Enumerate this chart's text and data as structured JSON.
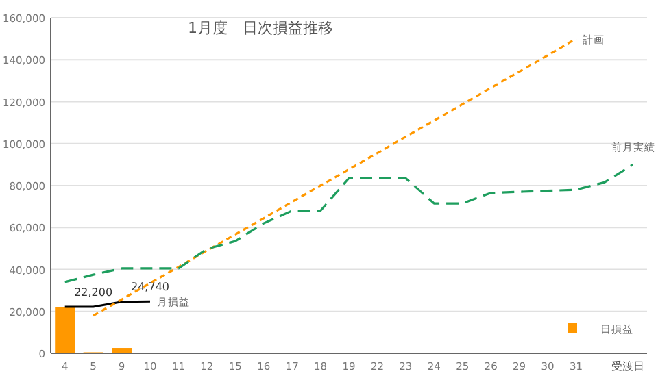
{
  "chart_data": {
    "type": "bar",
    "title": "1月度　日次損益推移",
    "xlabel": "受渡日",
    "categories": [
      "4",
      "5",
      "9",
      "10",
      "11",
      "12",
      "15",
      "16",
      "17",
      "18",
      "19",
      "22",
      "23",
      "24",
      "25",
      "26",
      "29",
      "30",
      "31",
      null,
      null
    ],
    "series": [
      {
        "name": "日損益",
        "color": "#ff9800",
        "values": [
          22200,
          500,
          2600,
          300,
          null,
          null,
          null,
          null,
          null,
          null,
          null,
          null,
          null,
          null,
          null,
          null,
          null,
          null,
          null,
          null,
          null
        ]
      },
      {
        "name": "月損益",
        "type": "line",
        "color": "#000000",
        "line_style": "solid",
        "values": [
          22200,
          22200,
          24600,
          24740,
          null,
          null,
          null,
          null,
          null,
          null,
          null,
          null,
          null,
          null,
          null,
          null,
          null,
          null,
          null,
          null,
          null
        ],
        "value_labels": [
          null,
          "22,200",
          null,
          "24,740",
          null,
          null,
          null,
          null,
          null,
          null,
          null,
          null,
          null,
          null,
          null,
          null,
          null,
          null,
          null,
          null,
          null
        ]
      },
      {
        "name": "計画",
        "type": "line",
        "color": "#ff9800",
        "line_style": "dotted",
        "values": [
          null,
          18000,
          25700,
          33500,
          41200,
          49000,
          56700,
          64400,
          72200,
          80000,
          87700,
          95500,
          103300,
          111000,
          118800,
          126600,
          134300,
          142100,
          150000,
          null,
          null
        ]
      },
      {
        "name": "前月実績",
        "type": "line",
        "color": "#1e9e5e",
        "line_style": "dashed",
        "values": [
          34000,
          37500,
          40500,
          40500,
          40500,
          49800,
          53500,
          62000,
          68000,
          68000,
          83500,
          83500,
          83500,
          71500,
          71500,
          76500,
          77000,
          77500,
          78000,
          81500,
          90000
        ]
      }
    ],
    "ylim": [
      0,
      160000
    ],
    "yticks": [
      {
        "value": 0,
        "label": "0"
      },
      {
        "value": 20000,
        "label": "20,000"
      },
      {
        "value": 40000,
        "label": "40,000"
      },
      {
        "value": 60000,
        "label": "60,000"
      },
      {
        "value": 80000,
        "label": "80,000"
      },
      {
        "value": 100000,
        "label": "100,000"
      },
      {
        "value": 120000,
        "label": "120,000"
      },
      {
        "value": 140000,
        "label": "140,000"
      },
      {
        "value": 160000,
        "label": "160,000"
      }
    ],
    "grid": "y",
    "legend": "bottom right"
  }
}
